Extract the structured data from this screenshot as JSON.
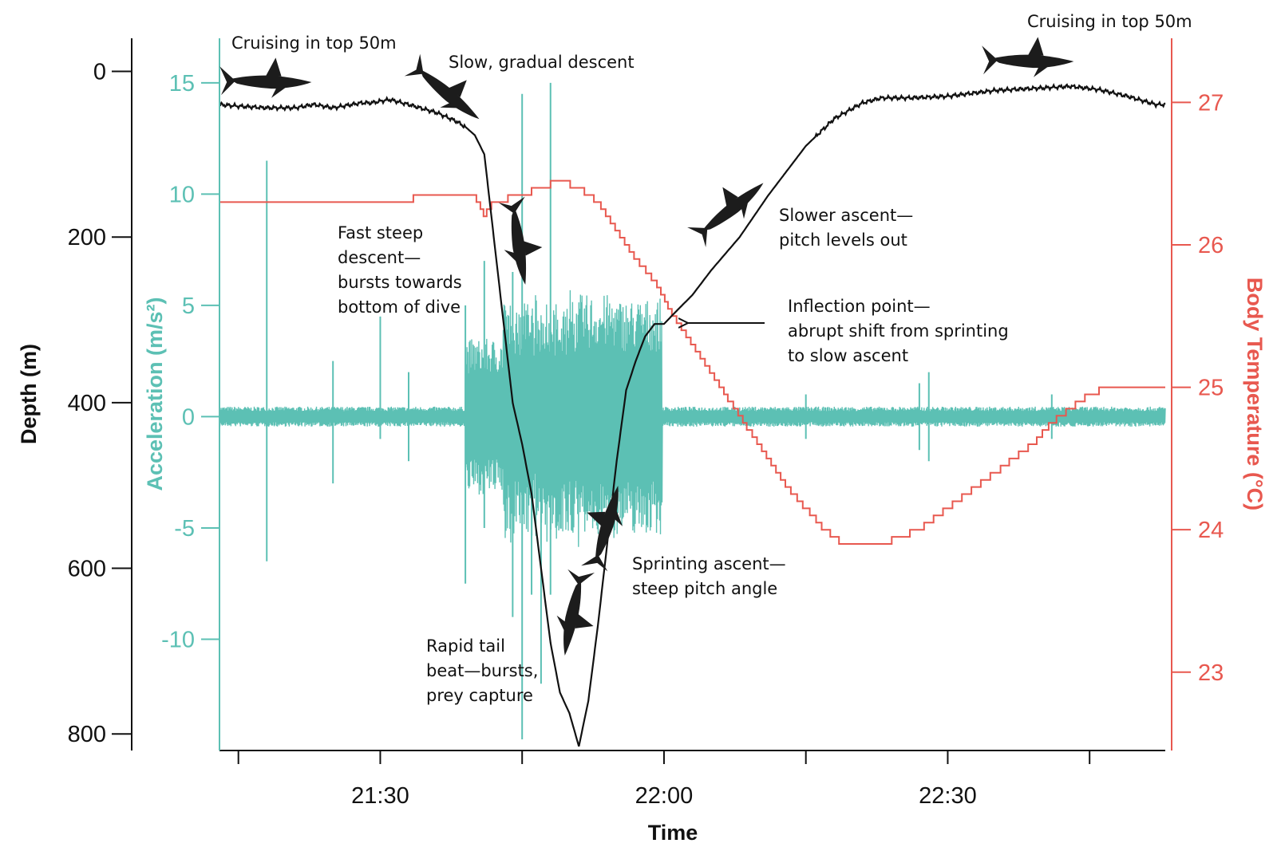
{
  "chart_data": {
    "type": "line",
    "title": "",
    "xlabel": "Time",
    "x_domain_minutes": [
      1273,
      1373
    ],
    "x_ticks": [
      {
        "minute": 1275,
        "label": ""
      },
      {
        "minute": 1290,
        "label": "21:30"
      },
      {
        "minute": 1305,
        "label": ""
      },
      {
        "minute": 1320,
        "label": "22:00"
      },
      {
        "minute": 1335,
        "label": ""
      },
      {
        "minute": 1350,
        "label": "22:30"
      },
      {
        "minute": 1365,
        "label": ""
      }
    ],
    "axes": {
      "depth": {
        "label": "Depth (m)",
        "range": [
          -40,
          820
        ],
        "inverted": true,
        "ticks": [
          "0",
          "200",
          "400",
          "600",
          "800"
        ],
        "tick_values": [
          0,
          200,
          400,
          600,
          800
        ],
        "color": "#111111"
      },
      "acceleration": {
        "label": "Acceleration (m/s²)",
        "range": [
          -15,
          17
        ],
        "ticks": [
          "15",
          "10",
          "5",
          "0",
          "-5",
          "-10"
        ],
        "tick_values": [
          15,
          10,
          5,
          0,
          -5,
          -10
        ],
        "color": "#5cc0b4"
      },
      "temperature": {
        "label": "Body Temperature (°C)",
        "range": [
          22.45,
          27.45
        ],
        "ticks": [
          "27",
          "26",
          "25",
          "24",
          "23"
        ],
        "tick_values": [
          27,
          26,
          25,
          24,
          23
        ],
        "color": "#e8584f"
      }
    },
    "series": [
      {
        "name": "Depth",
        "axis": "depth",
        "color": "#111111",
        "points": [
          [
            1273,
            40
          ],
          [
            1275,
            42
          ],
          [
            1278,
            44
          ],
          [
            1281,
            44
          ],
          [
            1283,
            40
          ],
          [
            1285,
            44
          ],
          [
            1288,
            38
          ],
          [
            1289,
            38
          ],
          [
            1291,
            34
          ],
          [
            1293,
            40
          ],
          [
            1296,
            50
          ],
          [
            1298,
            60
          ],
          [
            1299,
            67
          ],
          [
            1300,
            77
          ],
          [
            1301,
            100
          ],
          [
            1302,
            200
          ],
          [
            1303,
            300
          ],
          [
            1304,
            400
          ],
          [
            1305,
            450
          ],
          [
            1306,
            510
          ],
          [
            1307,
            600
          ],
          [
            1308,
            690
          ],
          [
            1309,
            750
          ],
          [
            1310,
            775
          ],
          [
            1311,
            815
          ],
          [
            1312,
            760
          ],
          [
            1313,
            670
          ],
          [
            1314,
            570
          ],
          [
            1315,
            470
          ],
          [
            1316,
            385
          ],
          [
            1317,
            350
          ],
          [
            1318,
            320
          ],
          [
            1319,
            305
          ],
          [
            1320,
            305
          ],
          [
            1321,
            293
          ],
          [
            1323,
            270
          ],
          [
            1325,
            240
          ],
          [
            1328,
            200
          ],
          [
            1331,
            150
          ],
          [
            1335,
            90
          ],
          [
            1338,
            57
          ],
          [
            1341,
            38
          ],
          [
            1343,
            32
          ],
          [
            1346,
            32
          ],
          [
            1350,
            30
          ],
          [
            1355,
            23
          ],
          [
            1360,
            20
          ],
          [
            1363,
            18
          ],
          [
            1366,
            22
          ],
          [
            1369,
            30
          ],
          [
            1372,
            40
          ]
        ]
      },
      {
        "name": "Acceleration",
        "axis": "acceleration",
        "color": "#5cc0b4",
        "points": [
          [
            1273,
            0
          ],
          [
            1373,
            0
          ]
        ]
      },
      {
        "name": "Body Temperature",
        "axis": "temperature",
        "color": "#e8584f",
        "points": [
          [
            1273,
            26.3
          ],
          [
            1287,
            26.3
          ],
          [
            1300,
            26.35
          ],
          [
            1301,
            26.2
          ],
          [
            1302,
            26.3
          ],
          [
            1305,
            26.35
          ],
          [
            1307,
            26.4
          ],
          [
            1309,
            26.45
          ],
          [
            1311,
            26.4
          ],
          [
            1313,
            26.3
          ],
          [
            1315,
            26.1
          ],
          [
            1317,
            25.9
          ],
          [
            1319,
            25.75
          ],
          [
            1321,
            25.5
          ],
          [
            1323,
            25.3
          ],
          [
            1325,
            25.1
          ],
          [
            1327,
            24.9
          ],
          [
            1329,
            24.7
          ],
          [
            1331,
            24.5
          ],
          [
            1333,
            24.3
          ],
          [
            1335,
            24.15
          ],
          [
            1337,
            24.0
          ],
          [
            1339,
            23.9
          ],
          [
            1341,
            23.9
          ],
          [
            1343,
            23.9
          ],
          [
            1345,
            23.95
          ],
          [
            1347,
            24.0
          ],
          [
            1349,
            24.1
          ],
          [
            1351,
            24.2
          ],
          [
            1353,
            24.3
          ],
          [
            1355,
            24.4
          ],
          [
            1357,
            24.5
          ],
          [
            1359,
            24.6
          ],
          [
            1361,
            24.75
          ],
          [
            1363,
            24.85
          ],
          [
            1365,
            24.95
          ],
          [
            1367,
            25.0
          ],
          [
            1369,
            25.0
          ],
          [
            1370,
            25.0
          ],
          [
            1373,
            25.0
          ]
        ]
      }
    ],
    "annotations": [
      {
        "text": "Cruising in top 50m"
      },
      {
        "text": "Slow, gradual descent"
      },
      {
        "lines": [
          "Fast steep",
          "descent—",
          "bursts towards",
          "bottom of dive"
        ]
      },
      {
        "lines": [
          "Slower ascent—",
          "pitch levels out"
        ]
      },
      {
        "lines": [
          "Inflection point—",
          "abrupt shift from sprinting",
          "to slow ascent"
        ]
      },
      {
        "lines": [
          "Sprinting ascent—",
          "steep pitch angle"
        ]
      },
      {
        "lines": [
          "Rapid tail",
          "beat—bursts,",
          "prey capture"
        ]
      },
      {
        "text": "Cruising in top 50m"
      }
    ],
    "icons": [
      "shark-icon",
      "shark-icon",
      "shark-icon",
      "shark-icon",
      "shark-icon",
      "shark-icon",
      "shark-icon"
    ]
  }
}
